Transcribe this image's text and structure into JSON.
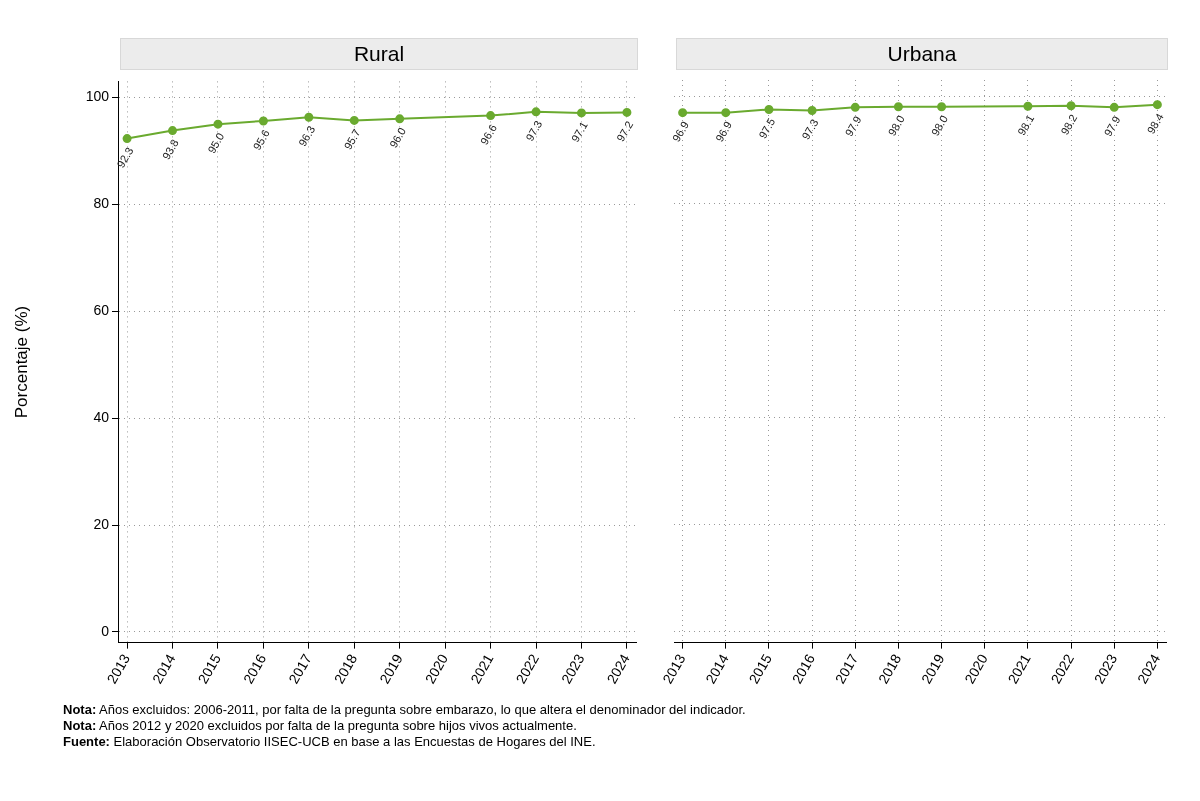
{
  "chart_data": [
    {
      "type": "line",
      "title": "Rural",
      "ylabel": "Porcentaje (%)",
      "x": [
        2013,
        2014,
        2015,
        2016,
        2017,
        2018,
        2019,
        2021,
        2022,
        2023,
        2024
      ],
      "series": [
        {
          "color": "#6aaa2f",
          "values": [
            92.3,
            93.8,
            95.0,
            95.6,
            96.3,
            95.7,
            96.0,
            96.6,
            97.3,
            97.1,
            97.2
          ],
          "value_labels": [
            "92.3",
            "93.8",
            "95.0",
            "95.6",
            "96.3",
            "95.7",
            "96.0",
            "96.6",
            "97.3",
            "97.1",
            "97.2"
          ]
        }
      ],
      "xlim": [
        2012.8,
        2024.2
      ],
      "xticks": [
        2013,
        2014,
        2015,
        2016,
        2017,
        2018,
        2019,
        2020,
        2021,
        2022,
        2023,
        2024
      ],
      "ylim": [
        -2,
        103
      ],
      "yticks": [
        0,
        20,
        40,
        60,
        80,
        100
      ],
      "grid": true,
      "marker": "circle",
      "line_style": "solid",
      "annotations": [
        "Nota: Años excluidos: 2006-2011, por falta de la pregunta sobre embarazo, lo que altera el denominador del indicador.",
        "Nota: Años 2012 y 2020 excluidos por falta de la pregunta sobre hijos vivos actualmente.",
        "Fuente: Elaboración Observatorio IISEC-UCB en base a las Encuestas de Hogares del INE."
      ]
    },
    {
      "type": "line",
      "title": "Urbana",
      "x": [
        2013,
        2014,
        2015,
        2016,
        2017,
        2018,
        2019,
        2021,
        2022,
        2023,
        2024
      ],
      "series": [
        {
          "color": "#6aaa2f",
          "values": [
            96.9,
            96.9,
            97.5,
            97.3,
            97.9,
            98.0,
            98.0,
            98.1,
            98.2,
            97.9,
            98.4
          ],
          "value_labels": [
            "96.9",
            "96.9",
            "97.5",
            "97.3",
            "97.9",
            "98.0",
            "98.0",
            "98.1",
            "98.2",
            "97.9",
            "98.4"
          ]
        }
      ],
      "xlim": [
        2012.8,
        2024.2
      ],
      "xticks": [
        2013,
        2014,
        2015,
        2016,
        2017,
        2018,
        2019,
        2020,
        2021,
        2022,
        2023,
        2024
      ],
      "ylim": [
        -2,
        103
      ],
      "yticks": [
        0,
        20,
        40,
        60,
        80,
        100
      ],
      "grid": true,
      "marker": "circle",
      "line_style": "solid",
      "tick_labels": "x"
    }
  ]
}
